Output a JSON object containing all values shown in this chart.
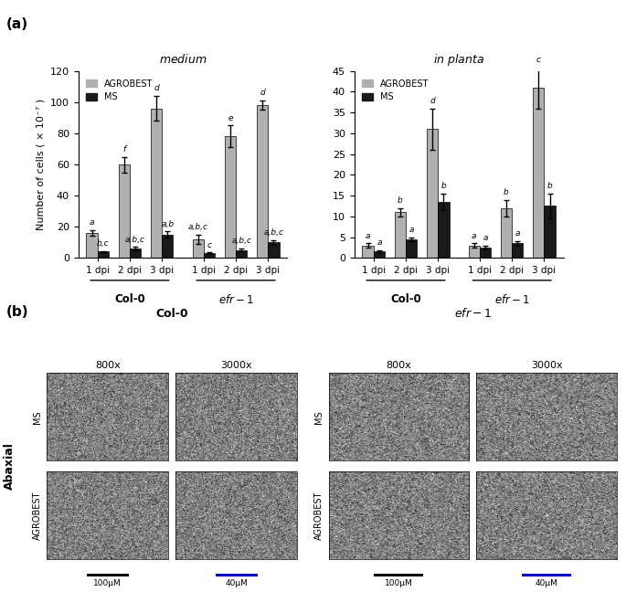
{
  "medium": {
    "title": "medium",
    "ylabel": "Number of cells ( × 10⁻⁷ )",
    "ylim": [
      0,
      120
    ],
    "yticks": [
      0,
      20,
      40,
      60,
      80,
      100,
      120
    ],
    "timepoints": [
      "1 dpi",
      "2 dpi",
      "3 dpi"
    ],
    "agrobest_vals": [
      16,
      60,
      96,
      12,
      78,
      98
    ],
    "ms_vals": [
      4,
      6,
      15,
      3,
      5,
      10
    ],
    "agrobest_err": [
      2,
      5,
      8,
      3,
      7,
      3
    ],
    "ms_err": [
      0.5,
      1,
      2,
      0.5,
      1,
      1.5
    ],
    "labels_agrobest": [
      "a",
      "f",
      "d",
      "a,b,c",
      "e",
      "d"
    ],
    "labels_ms": [
      "b,c",
      "a,b,c",
      "a,b",
      "c",
      "a,b,c",
      "a,b,c"
    ]
  },
  "in_planta": {
    "title": "in planta",
    "ylabel": "",
    "ylim": [
      0,
      45
    ],
    "yticks": [
      0,
      5,
      10,
      15,
      20,
      25,
      30,
      35,
      40,
      45
    ],
    "timepoints": [
      "1 dpi",
      "2 dpi",
      "3 dpi"
    ],
    "agrobest_vals": [
      3,
      11,
      31,
      3,
      12,
      41
    ],
    "ms_vals": [
      1.5,
      4.5,
      13.5,
      2.5,
      3.5,
      12.5
    ],
    "agrobest_err": [
      0.5,
      1,
      5,
      0.5,
      2,
      5
    ],
    "ms_err": [
      0.3,
      0.5,
      2,
      0.5,
      0.5,
      3
    ],
    "labels_agrobest": [
      "a",
      "b",
      "d",
      "a",
      "b",
      "c"
    ],
    "labels_ms": [
      "a",
      "a",
      "b",
      "a",
      "a",
      "b"
    ]
  },
  "agrobest_color": "#b0b0b0",
  "ms_color": "#1a1a1a",
  "panel_label_a": "(a)",
  "panel_label_b": "(b)",
  "bar_width": 0.35,
  "x_positions": [
    0,
    1,
    2,
    3.3,
    4.3,
    5.3
  ],
  "legend_agrobest": "AGROBEST",
  "legend_ms": "MS",
  "sem_col0_title": "Col-0",
  "sem_efr1_title": "efr-1",
  "sem_800x": "800x",
  "sem_3000x": "3000x",
  "sem_abaxial": "Abaxial",
  "sem_ms_label": "MS",
  "sem_agrobest_label": "AGROBEST",
  "scale_100um": "100μM",
  "scale_40um": "40μM",
  "col0_label": "Col-0",
  "efr1_label": "efr-1"
}
